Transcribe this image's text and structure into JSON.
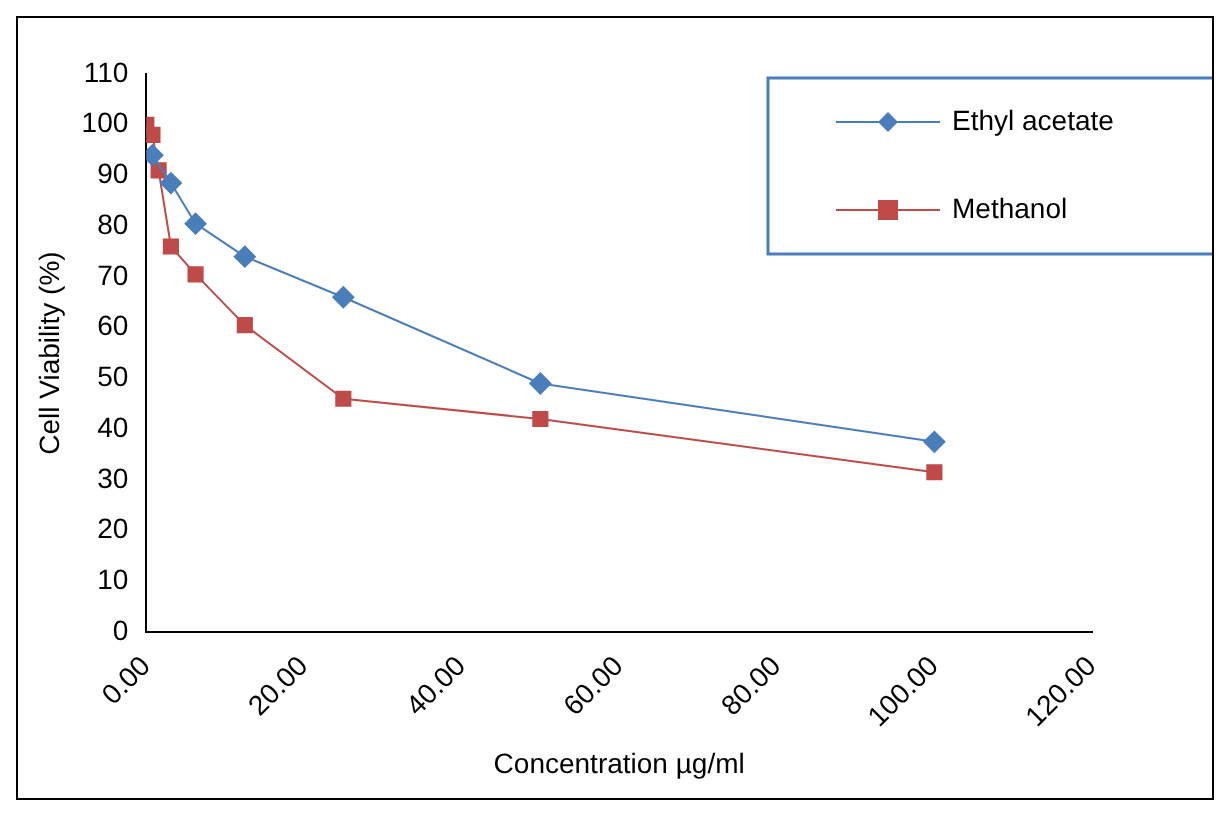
{
  "chart_data": {
    "type": "line",
    "xlabel": "Concentration µg/ml",
    "ylabel": "Cell Viability (%)",
    "series": [
      {
        "name": "Ethyl acetate",
        "color": "#4a7ebb",
        "marker": "diamond",
        "x": [
          0.78,
          3.125,
          6.25,
          12.5,
          25,
          50,
          100
        ],
        "values": [
          94,
          88.5,
          80.5,
          74,
          66,
          49,
          37.5
        ]
      },
      {
        "name": "Methanol",
        "color": "#be4b48",
        "marker": "square",
        "x": [
          0,
          0.78,
          1.56,
          3.125,
          6.25,
          12.5,
          25,
          50,
          100
        ],
        "values": [
          100,
          98,
          91,
          76,
          70.5,
          60.5,
          46,
          42,
          31.5
        ]
      }
    ],
    "xlim": [
      0,
      120
    ],
    "xticks": [
      {
        "value": 0,
        "label": "0.00"
      },
      {
        "value": 20,
        "label": "20.00"
      },
      {
        "value": 40,
        "label": "40.00"
      },
      {
        "value": 60,
        "label": "60.00"
      },
      {
        "value": 80,
        "label": "80.00"
      },
      {
        "value": 100,
        "label": "100.00"
      },
      {
        "value": 120,
        "label": "120.00"
      }
    ],
    "ylim": [
      0,
      110
    ],
    "yticks": [
      0,
      10,
      20,
      30,
      40,
      50,
      60,
      70,
      80,
      90,
      100,
      110
    ],
    "grid": false,
    "legend": "top right",
    "line_style": "solid"
  }
}
